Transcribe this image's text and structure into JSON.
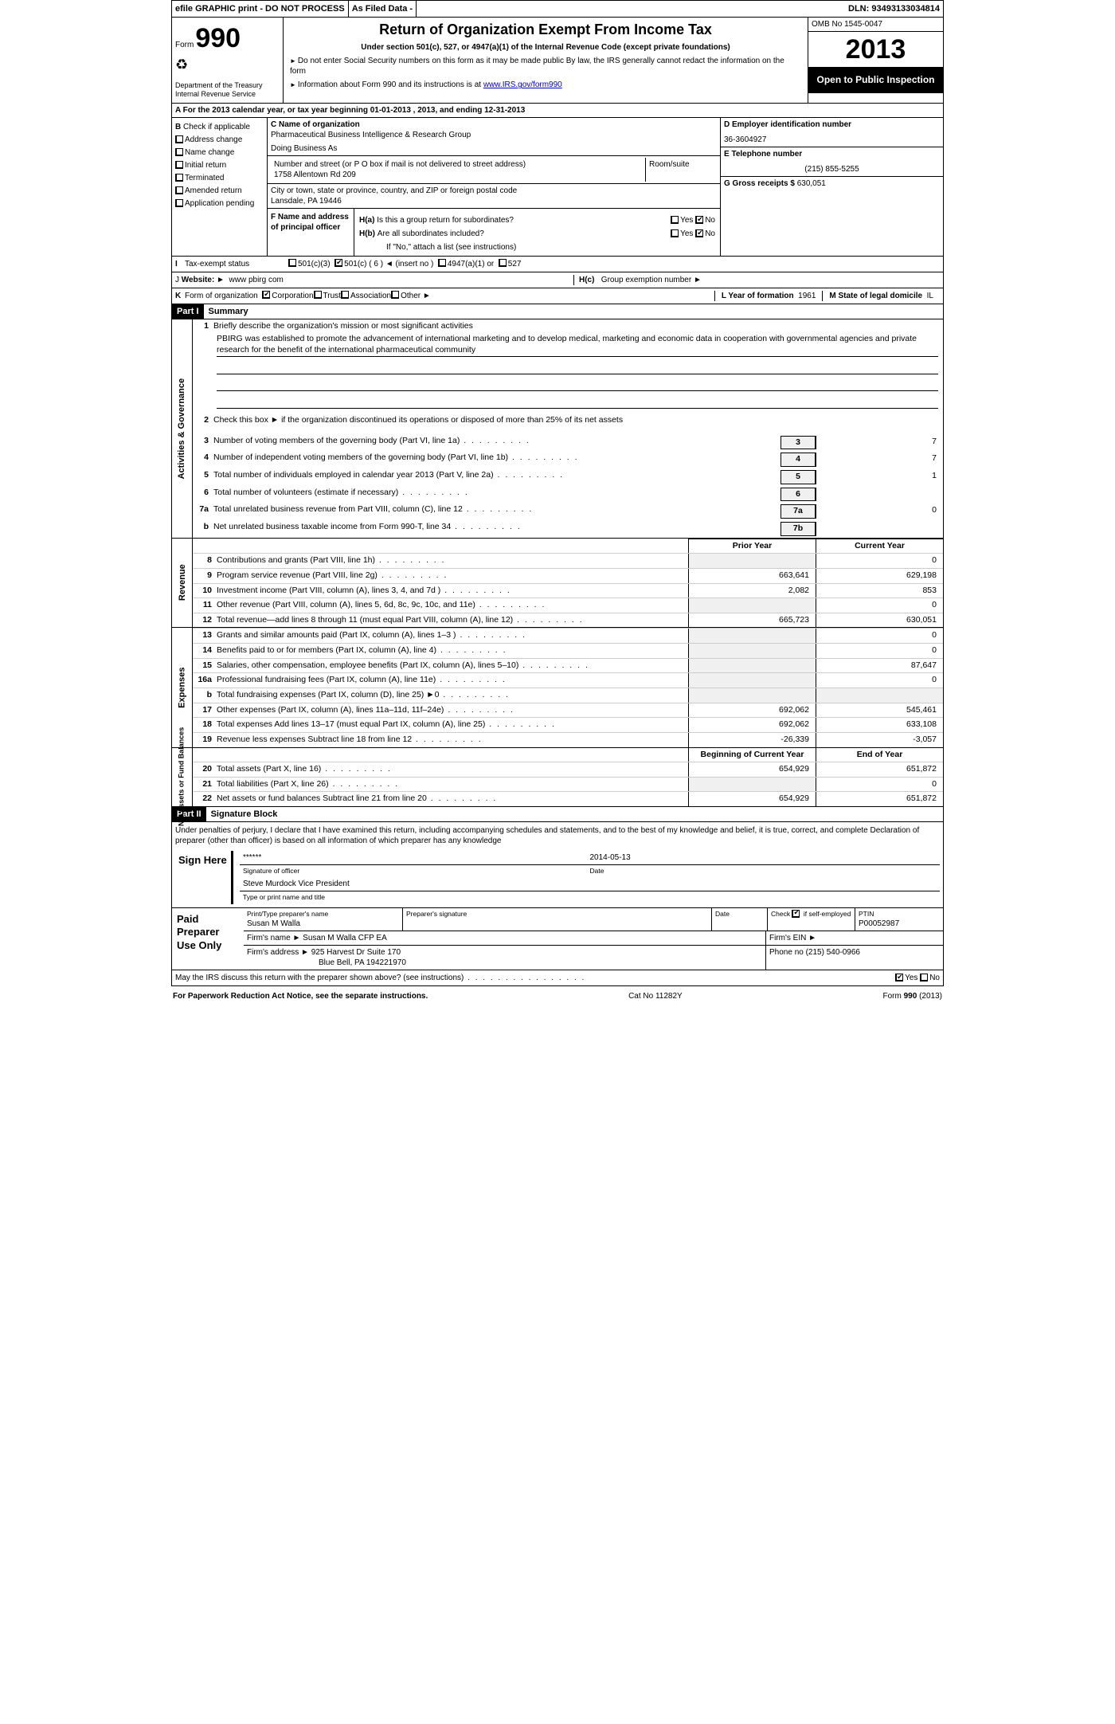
{
  "topbar": {
    "efile": "efile GRAPHIC print - DO NOT PROCESS",
    "asfiled": "As Filed Data -",
    "dln_label": "DLN:",
    "dln": "93493133034814"
  },
  "header": {
    "form_word": "Form",
    "form_num": "990",
    "dept1": "Department of the Treasury",
    "dept2": "Internal Revenue Service",
    "title": "Return of Organization Exempt From Income Tax",
    "subtitle": "Under section 501(c), 527, or 4947(a)(1) of the Internal Revenue Code (except private foundations)",
    "note1": "Do not enter Social Security numbers on this form as it may be made public  By law, the IRS generally cannot redact the information on the form",
    "note2_pre": "Information about Form 990 and its instructions is at ",
    "note2_link": "www.IRS.gov/form990",
    "omb": "OMB No  1545-0047",
    "year": "2013",
    "open": "Open to Public Inspection"
  },
  "line_a": "A For the 2013 calendar year, or tax year beginning 01-01-2013     , 2013, and ending 12-31-2013",
  "col_b": {
    "hdr": "B",
    "check": "Check if applicable",
    "items": [
      "Address change",
      "Name change",
      "Initial return",
      "Terminated",
      "Amended return",
      "Application pending"
    ]
  },
  "col_c": {
    "name_lbl": "C Name of organization",
    "name": "Pharmaceutical Business Intelligence & Research Group",
    "dba_lbl": "Doing Business As",
    "addr_lbl": "Number and street (or P O  box if mail is not delivered to street address)",
    "room_lbl": "Room/suite",
    "addr": "1758 Allentown Rd 209",
    "city_lbl": "City or town, state or province, country, and ZIP or foreign postal code",
    "city": "Lansdale, PA  19446",
    "f_lbl": "F   Name and address of principal officer"
  },
  "col_d": {
    "ein_lbl": "D Employer identification number",
    "ein": "36-3604927",
    "tel_lbl": "E Telephone number",
    "tel": "(215) 855-5255",
    "gross_lbl": "G Gross receipts $",
    "gross": "630,051"
  },
  "h_block": {
    "ha_lbl": "H(a)",
    "ha_txt": "Is this a group return for subordinates?",
    "hb_lbl": "H(b)",
    "hb_txt": "Are all subordinates included?",
    "hb_note": "If \"No,\" attach a list  (see instructions)",
    "hc_lbl": "H(c)",
    "hc_txt": "Group exemption number ►",
    "yes": "Yes",
    "no": "No"
  },
  "row_i": {
    "tag": "I",
    "label": "Tax-exempt status",
    "opts": [
      "501(c)(3)",
      "501(c) ( 6 ) ◄ (insert no )",
      "4947(a)(1) or",
      "527"
    ]
  },
  "row_j": {
    "tag": "J",
    "label": "Website: ►",
    "val": "www pbirg com"
  },
  "row_k": {
    "tag": "K",
    "label": "Form of organization",
    "opts": [
      "Corporation",
      "Trust",
      "Association",
      "Other ►"
    ],
    "l_lbl": "L Year of formation",
    "l_val": "1961",
    "m_lbl": "M State of legal domicile",
    "m_val": "IL"
  },
  "part1": {
    "hdr": "Part I",
    "title": "Summary"
  },
  "governance": {
    "side": "Activities & Governance",
    "l1_lbl": "Briefly describe the organization's mission or most significant activities",
    "l1_txt": "PBIRG was established to promote the advancement of international marketing and to develop medical, marketing and economic data in cooperation with governmental agencies and private research for the benefit of the international pharmaceutical community",
    "l2": "Check this box ►     if the organization discontinued its operations or disposed of more than 25% of its net assets",
    "lines": [
      {
        "n": "3",
        "t": "Number of voting members of the governing body (Part VI, line 1a)",
        "box": "3",
        "val": "7"
      },
      {
        "n": "4",
        "t": "Number of independent voting members of the governing body (Part VI, line 1b)",
        "box": "4",
        "val": "7"
      },
      {
        "n": "5",
        "t": "Total number of individuals employed in calendar year 2013 (Part V, line 2a)",
        "box": "5",
        "val": "1"
      },
      {
        "n": "6",
        "t": "Total number of volunteers (estimate if necessary)",
        "box": "6",
        "val": ""
      },
      {
        "n": "7a",
        "t": "Total unrelated business revenue from Part VIII, column (C), line 12",
        "box": "7a",
        "val": "0"
      },
      {
        "n": "b",
        "t": "Net unrelated business taxable income from Form 990-T, line 34",
        "box": "7b",
        "val": ""
      }
    ]
  },
  "cols_hdr": {
    "prior": "Prior Year",
    "current": "Current Year"
  },
  "revenue": {
    "side": "Revenue",
    "lines": [
      {
        "n": "8",
        "t": "Contributions and grants (Part VIII, line 1h)",
        "c1": "",
        "c2": "0"
      },
      {
        "n": "9",
        "t": "Program service revenue (Part VIII, line 2g)",
        "c1": "663,641",
        "c2": "629,198"
      },
      {
        "n": "10",
        "t": "Investment income (Part VIII, column (A), lines 3, 4, and 7d )",
        "c1": "2,082",
        "c2": "853"
      },
      {
        "n": "11",
        "t": "Other revenue (Part VIII, column (A), lines 5, 6d, 8c, 9c, 10c, and 11e)",
        "c1": "",
        "c2": "0"
      },
      {
        "n": "12",
        "t": "Total revenue—add lines 8 through 11 (must equal Part VIII, column (A), line 12)",
        "c1": "665,723",
        "c2": "630,051"
      }
    ]
  },
  "expenses": {
    "side": "Expenses",
    "lines": [
      {
        "n": "13",
        "t": "Grants and similar amounts paid (Part IX, column (A), lines 1–3 )",
        "c1": "",
        "c2": "0"
      },
      {
        "n": "14",
        "t": "Benefits paid to or for members (Part IX, column (A), line 4)",
        "c1": "",
        "c2": "0"
      },
      {
        "n": "15",
        "t": "Salaries, other compensation, employee benefits (Part IX, column (A), lines 5–10)",
        "c1": "",
        "c2": "87,647"
      },
      {
        "n": "16a",
        "t": "Professional fundraising fees (Part IX, column (A), line 11e)",
        "c1": "",
        "c2": "0"
      },
      {
        "n": "b",
        "t": "Total fundraising expenses (Part IX, column (D), line 25) ►0",
        "c1": "",
        "c2": ""
      },
      {
        "n": "17",
        "t": "Other expenses (Part IX, column (A), lines 11a–11d, 11f–24e)",
        "c1": "692,062",
        "c2": "545,461"
      },
      {
        "n": "18",
        "t": "Total expenses  Add lines 13–17 (must equal Part IX, column (A), line 25)",
        "c1": "692,062",
        "c2": "633,108"
      },
      {
        "n": "19",
        "t": "Revenue less expenses  Subtract line 18 from line 12",
        "c1": "-26,339",
        "c2": "-3,057"
      }
    ]
  },
  "netassets": {
    "side": "Net Assets or Fund Balances",
    "hdr1": "Beginning of Current Year",
    "hdr2": "End of Year",
    "lines": [
      {
        "n": "20",
        "t": "Total assets (Part X, line 16)",
        "c1": "654,929",
        "c2": "651,872"
      },
      {
        "n": "21",
        "t": "Total liabilities (Part X, line 26)",
        "c1": "",
        "c2": "0"
      },
      {
        "n": "22",
        "t": "Net assets or fund balances  Subtract line 21 from line 20",
        "c1": "654,929",
        "c2": "651,872"
      }
    ]
  },
  "part2": {
    "hdr": "Part II",
    "title": "Signature Block"
  },
  "sig": {
    "decl": "Under penalties of perjury, I declare that I have examined this return, including accompanying schedules and statements, and to the best of my knowledge and belief, it is true, correct, and complete  Declaration of preparer (other than officer) is based on all information of which preparer has any knowledge",
    "sign_here": "Sign Here",
    "stars": "******",
    "sig_of": "Signature of officer",
    "date": "2014-05-13",
    "date_lbl": "Date",
    "name": "Steve Murdock Vice President",
    "name_lbl": "Type or print name and title"
  },
  "prep": {
    "left": "Paid Preparer Use Only",
    "r1": {
      "a": "Print/Type preparer's name",
      "a_val": "Susan M Walla",
      "b": "Preparer's signature",
      "c": "Date",
      "d": "Check",
      "d2": "if self-employed",
      "e": "PTIN",
      "e_val": "P00052987"
    },
    "r2": {
      "a": "Firm's name    ►",
      "a_val": "Susan M Walla CFP EA",
      "b": "Firm's EIN ►"
    },
    "r3": {
      "a": "Firm's address ►",
      "a_val": "925 Harvest Dr Suite 170",
      "a_val2": "Blue Bell, PA  194221970",
      "b": "Phone no  (215) 540-0966"
    },
    "discuss": "May the IRS discuss this return with the preparer shown above? (see instructions)",
    "yes": "Yes",
    "no": "No"
  },
  "footer": {
    "l": "For Paperwork Reduction Act Notice, see the separate instructions.",
    "c": "Cat No  11282Y",
    "r": "Form 990 (2013)"
  }
}
